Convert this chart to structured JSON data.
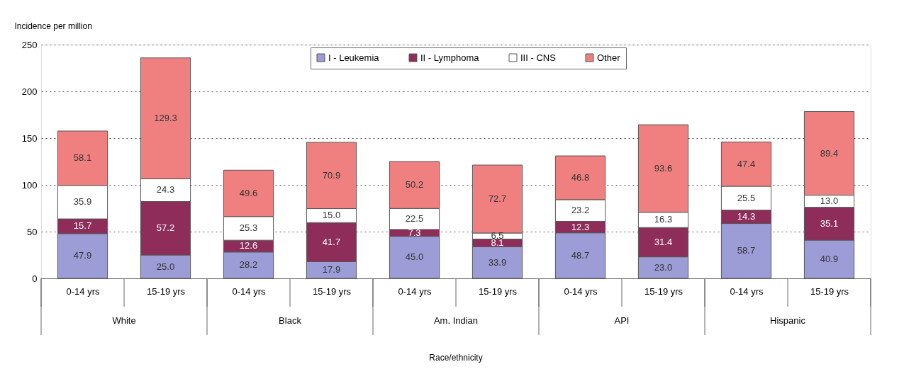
{
  "chart_data": {
    "type": "bar",
    "stacked": true,
    "ylabel": "Incidence per million",
    "categories": [
      "0-14 yrs",
      "15-19 yrs",
      "0-14 yrs",
      "15-19 yrs",
      "0-14 yrs",
      "15-19 yrs",
      "0-14 yrs",
      "15-19 yrs",
      "0-14 yrs",
      "15-19 yrs"
    ],
    "series": [
      {
        "name": "I - Leukemia",
        "color": "#9c9cd6",
        "values": [
          47.9,
          25.0,
          28.2,
          17.9,
          45.0,
          33.9,
          48.7,
          23.0,
          58.7,
          40.9
        ],
        "value_labels": [
          "47.9",
          "25.0",
          "28.2",
          "17.9",
          "45.0",
          "33.9",
          "48.7",
          "23.0",
          "58.7",
          "40.9"
        ]
      },
      {
        "name": "II - Lymphoma",
        "color": "#8e2d5a",
        "values": [
          15.7,
          57.2,
          12.6,
          41.7,
          7.3,
          8.1,
          12.3,
          31.4,
          14.3,
          35.1
        ],
        "value_labels": [
          "15.7",
          "57.2",
          "12.6",
          "41.7",
          "7.3",
          "8.1",
          "12.3",
          "31.4",
          "14.3",
          "35.1"
        ]
      },
      {
        "name": "III - CNS",
        "color": "#ffffff",
        "values": [
          35.9,
          24.3,
          25.3,
          15.0,
          22.5,
          6.5,
          23.2,
          16.3,
          25.5,
          13.0
        ],
        "value_labels": [
          "35.9",
          "24.3",
          "25.3",
          "15.0",
          "22.5",
          "6.5",
          "23.2",
          "16.3",
          "25.5",
          "13.0"
        ]
      },
      {
        "name": "Other",
        "color": "#f08080",
        "values": [
          58.1,
          129.3,
          49.6,
          70.9,
          50.2,
          72.7,
          46.8,
          93.6,
          47.4,
          89.4
        ],
        "value_labels": [
          "58.1",
          "129.3",
          "49.6",
          "70.9",
          "50.2",
          "72.7",
          "46.8",
          "93.6",
          "47.4",
          "89.4"
        ]
      }
    ],
    "annotations": [
      "White",
      "Black",
      "Am. Indian",
      "API",
      "Hispanic",
      "Race/ethnicity"
    ],
    "ylim": [
      0,
      250
    ],
    "yticks": [
      0,
      50,
      100,
      150,
      200,
      250
    ],
    "grid": "y",
    "legend": "top"
  }
}
